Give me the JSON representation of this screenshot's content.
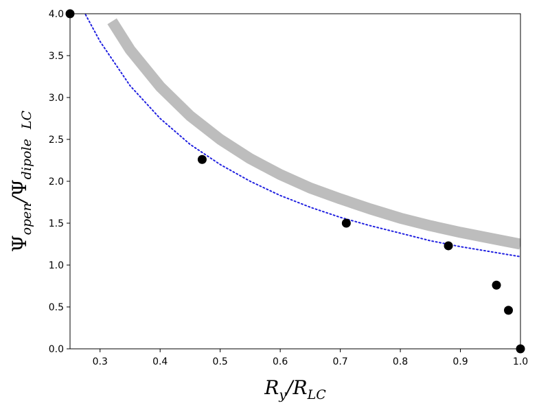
{
  "chart_data": {
    "type": "scatter",
    "xlabel": {
      "main": "R",
      "main_sub": "y",
      "sep": "/",
      "den": "R",
      "den_sub": "LC"
    },
    "ylabel": {
      "num": "Ψ",
      "num_sub": "open",
      "sep": "/",
      "den": "Ψ",
      "den_sub": "dipole",
      "tail_sub": "LC"
    },
    "xlim": [
      0.25,
      1.0
    ],
    "ylim": [
      0.0,
      4.0
    ],
    "xticks": [
      0.3,
      0.4,
      0.5,
      0.6,
      0.7,
      0.8,
      0.9,
      1.0
    ],
    "xtick_labels": [
      "0.3",
      "0.4",
      "0.5",
      "0.6",
      "0.7",
      "0.8",
      "0.9",
      "1.0"
    ],
    "yticks": [
      0.0,
      0.5,
      1.0,
      1.5,
      2.0,
      2.5,
      3.0,
      3.5,
      4.0
    ],
    "ytick_labels": [
      "0.0",
      "0.5",
      "1.0",
      "1.5",
      "2.0",
      "2.5",
      "3.0",
      "3.5",
      "4.0"
    ],
    "grid": false,
    "series": [
      {
        "kind": "band",
        "color": "#bdbdbd",
        "x": [
          0.32,
          0.35,
          0.4,
          0.45,
          0.5,
          0.55,
          0.6,
          0.65,
          0.7,
          0.75,
          0.8,
          0.85,
          0.9,
          0.95,
          1.0
        ],
        "y": [
          3.91,
          3.57,
          3.13,
          2.78,
          2.5,
          2.27,
          2.08,
          1.92,
          1.79,
          1.67,
          1.56,
          1.47,
          1.39,
          1.32,
          1.25
        ]
      },
      {
        "kind": "dotted-line",
        "color": "#1f1fe0",
        "x": [
          0.25,
          0.275,
          0.3,
          0.35,
          0.4,
          0.45,
          0.5,
          0.55,
          0.6,
          0.65,
          0.7,
          0.75,
          0.8,
          0.85,
          0.9,
          0.95,
          1.0
        ],
        "y": [
          4.4,
          4.0,
          3.67,
          3.14,
          2.75,
          2.44,
          2.2,
          2.0,
          1.83,
          1.69,
          1.57,
          1.47,
          1.38,
          1.29,
          1.22,
          1.16,
          1.1
        ]
      },
      {
        "kind": "points",
        "color": "#000000",
        "x": [
          0.25,
          0.47,
          0.71,
          0.88,
          0.96,
          0.98,
          1.0
        ],
        "y": [
          4.0,
          2.26,
          1.5,
          1.23,
          0.76,
          0.46,
          0.0
        ]
      }
    ]
  }
}
